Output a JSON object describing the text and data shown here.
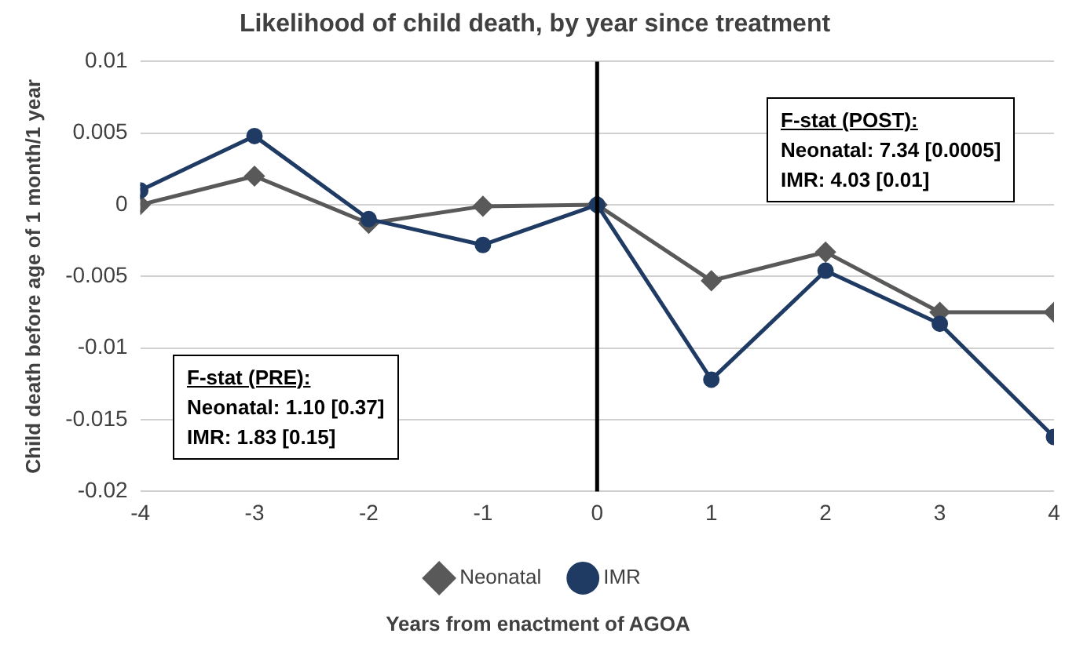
{
  "chart_data": {
    "type": "line",
    "title": "Likelihood of child death, by year since treatment",
    "xlabel": "Years from enactment of AGOA",
    "ylabel": "Child death before age of 1 month/1 year",
    "x": [
      -4,
      -3,
      -2,
      -1,
      0,
      1,
      2,
      3,
      4
    ],
    "xlim": [
      -4,
      4
    ],
    "xticks": [
      -4,
      -3,
      -2,
      -1,
      0,
      1,
      2,
      3,
      4
    ],
    "ylim": [
      -0.02,
      0.01
    ],
    "yticks": [
      -0.02,
      -0.015,
      -0.01,
      -0.005,
      0,
      0.005,
      0.01
    ],
    "series": [
      {
        "name": "Neonatal",
        "color": "#595959",
        "marker": "diamond",
        "values": [
          0,
          0.002,
          -0.0013,
          -0.0001,
          0,
          -0.0053,
          -0.0033,
          -0.0075,
          -0.0075
        ]
      },
      {
        "name": "IMR",
        "color": "#1f3b63",
        "marker": "circle",
        "values": [
          0.001,
          0.0048,
          -0.001,
          -0.0028,
          0,
          -0.0122,
          -0.0046,
          -0.0083,
          -0.0162
        ]
      }
    ],
    "ref_lines": [
      {
        "axis": "x",
        "value": 0,
        "color": "#000000"
      }
    ],
    "annotations": [
      "F-stat (POST):\nNeonatal: 7.34 [0.0005]\nIMR: 4.03 [0.01]",
      "F-stat (PRE):\nNeonatal: 1.10 [0.37]\nIMR: 1.83 [0.15]"
    ],
    "grid": "y",
    "legend": "bottom"
  }
}
